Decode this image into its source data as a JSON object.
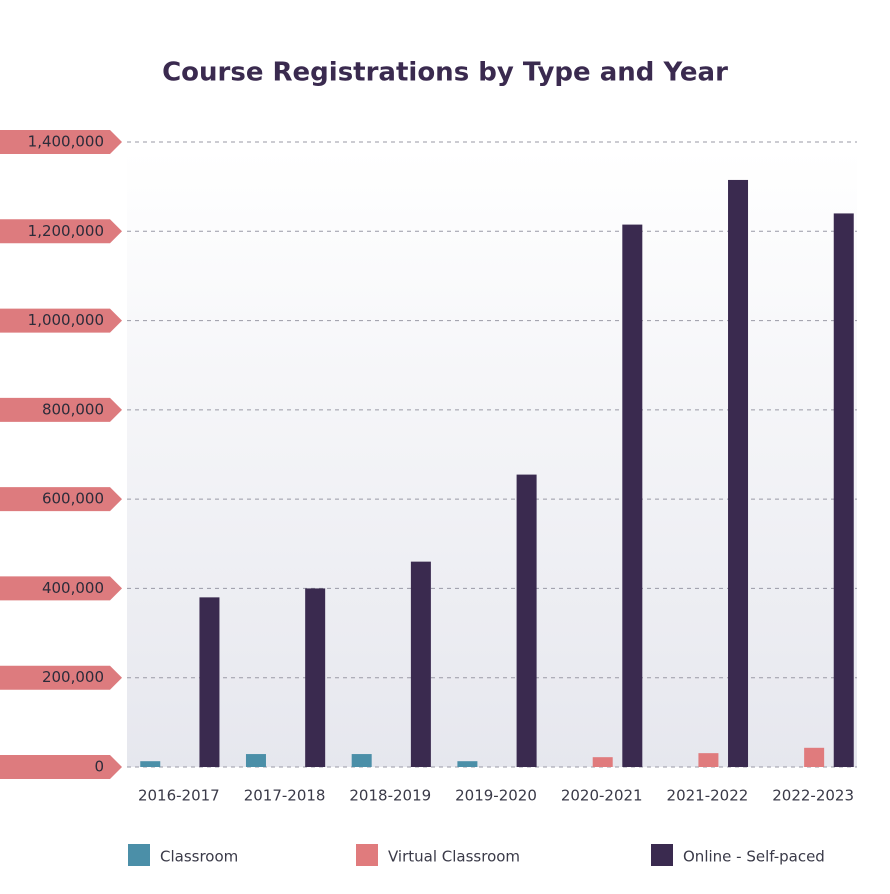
{
  "chart_data": {
    "type": "bar",
    "title": "Course Registrations by Type and Year",
    "categories": [
      "2016-2017",
      "2017-2018",
      "2018-2019",
      "2019-2020",
      "2020-2021",
      "2021-2022",
      "2022-2023"
    ],
    "series": [
      {
        "name": "Classroom",
        "color": "#4b8fa8",
        "values": [
          13000,
          29000,
          29000,
          13000,
          0,
          0,
          0
        ]
      },
      {
        "name": "Virtual Classroom",
        "color": "#e07b7d",
        "values": [
          0,
          0,
          0,
          0,
          22000,
          31000,
          43000
        ]
      },
      {
        "name": "Online - Self-paced",
        "color": "#3a2a4f",
        "values": [
          380000,
          400000,
          460000,
          655000,
          1215000,
          1315000,
          1240000
        ]
      }
    ],
    "ylim": [
      0,
      1400000
    ],
    "yticks": [
      0,
      {
        "value": 200000,
        "label": "200,000"
      },
      {
        "value": 400000,
        "label": "400,000"
      },
      {
        "value": 600000,
        "label": "600,000"
      },
      {
        "value": 800000,
        "label": "800,000"
      },
      {
        "value": 1000000,
        "label": "1,000,000"
      },
      {
        "value": 1200000,
        "label": "1,200,000"
      },
      {
        "value": 1400000,
        "label": "1,400,000"
      }
    ],
    "grid": true
  }
}
